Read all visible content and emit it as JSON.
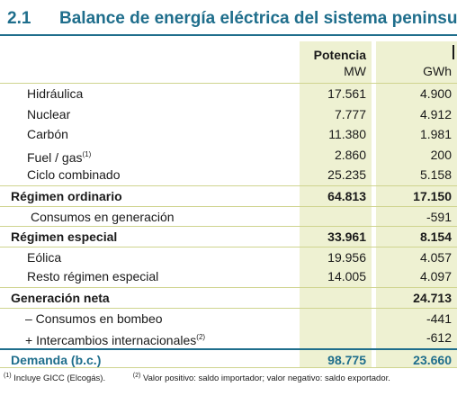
{
  "title": {
    "number": "2.1",
    "text": "Balance de energía eléctrica del sistema peninsular"
  },
  "header": {
    "potencia": "Potencia",
    "mw": "MW",
    "gwh": "GWh"
  },
  "rows": [
    {
      "label": "Hidráulica",
      "mw": "17.561",
      "gwh": "4.900"
    },
    {
      "label": "Nuclear",
      "mw": "7.777",
      "gwh": "4.912"
    },
    {
      "label": "Carbón",
      "mw": "11.380",
      "gwh": "1.981"
    },
    {
      "label": "Fuel / gas",
      "sup": "(1)",
      "mw": "2.860",
      "gwh": "200"
    },
    {
      "label": "Ciclo combinado",
      "mw": "25.235",
      "gwh": "5.158"
    },
    {
      "label": "Régimen ordinario",
      "mw": "64.813",
      "gwh": "17.150"
    },
    {
      "label": "Consumos en generación",
      "mw": "",
      "gwh": "-591"
    },
    {
      "label": "Régimen especial",
      "mw": "33.961",
      "gwh": "8.154"
    },
    {
      "label": "Eólica",
      "mw": "19.956",
      "gwh": "4.057"
    },
    {
      "label": "Resto régimen especial",
      "mw": "14.005",
      "gwh": "4.097"
    },
    {
      "label": "Generación neta",
      "mw": "",
      "gwh": "24.713"
    },
    {
      "label": "– Consumos en bombeo",
      "mw": "",
      "gwh": "-441"
    },
    {
      "label": "+ Intercambios internacionales",
      "sup": "(2)",
      "mw": "",
      "gwh": "-612"
    },
    {
      "label": "Demanda (b.c.)",
      "mw": "98.775",
      "gwh": "23.660"
    }
  ],
  "notes": {
    "n1_mark": "(1)",
    "n1_text": "Incluye GICC (Elcogás).",
    "n2_mark": "(2)",
    "n2_text": "Valor positivo: saldo importador; valor negativo: saldo exportador."
  }
}
